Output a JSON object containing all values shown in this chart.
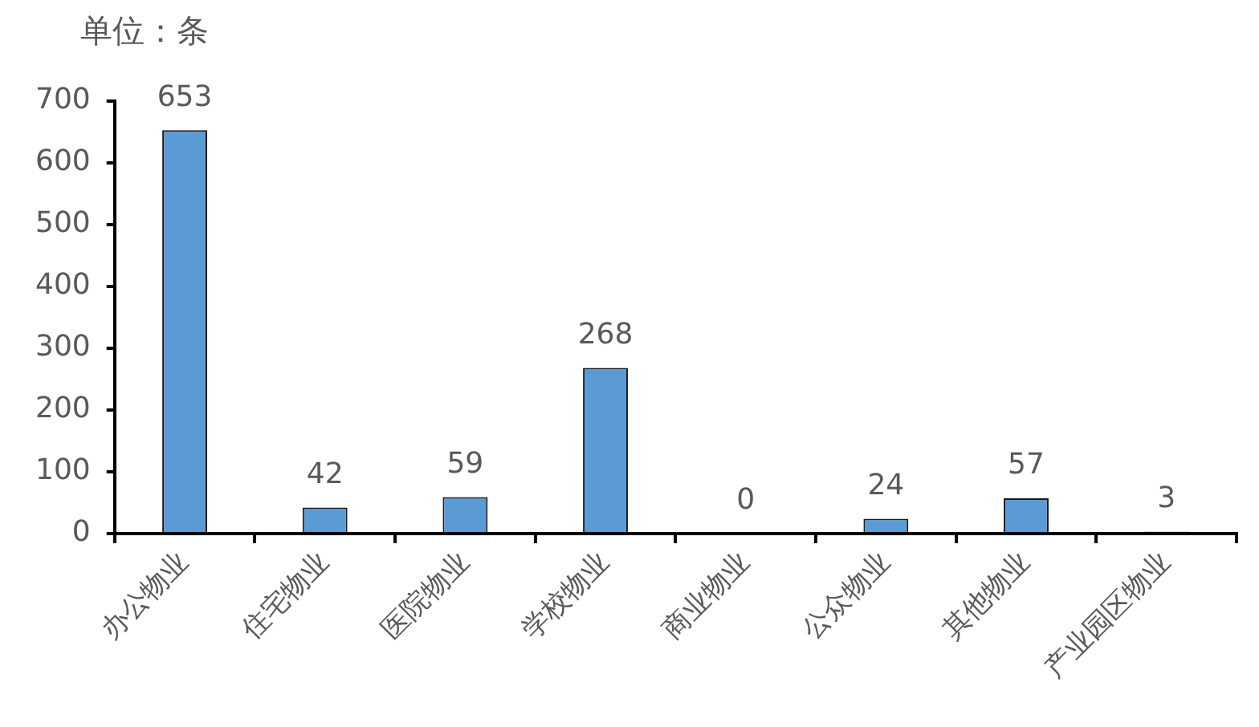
{
  "chart_data": {
    "type": "bar",
    "ylabel": "单位：条",
    "categories": [
      "办公物业",
      "住宅物业",
      "医院物业",
      "学校物业",
      "商业物业",
      "公众物业",
      "其他物业",
      "产业园区物业"
    ],
    "values": [
      653,
      42,
      59,
      268,
      0,
      24,
      57,
      3
    ],
    "color": "#5b9bd5",
    "ylim": [
      0,
      700
    ],
    "yticks": [
      0,
      100,
      200,
      300,
      400,
      500,
      600,
      700
    ],
    "grid": false,
    "legend": false,
    "data_labels": true
  }
}
